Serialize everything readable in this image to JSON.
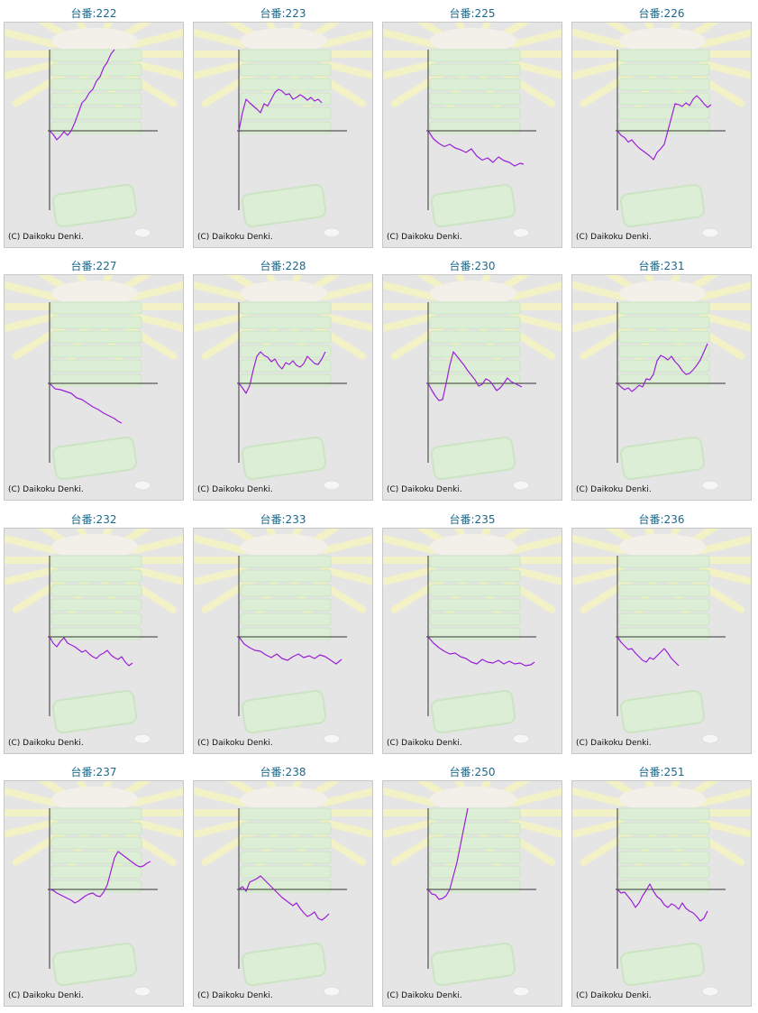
{
  "copyright": "(C) Daikoku Denki.",
  "colors": {
    "line": "#9b1fd6",
    "axis": "#333333",
    "title": "#1b6a8e",
    "background": "#e5e5e5"
  },
  "chart_data": [
    {
      "type": "line",
      "title": "台番:222",
      "x": [
        0,
        4,
        8,
        12,
        16,
        20,
        24,
        28,
        32,
        36,
        40,
        44,
        48,
        52,
        56,
        60,
        64,
        68,
        72
      ],
      "y": [
        0,
        -8,
        -20,
        -12,
        -2,
        -10,
        0,
        18,
        40,
        62,
        70,
        84,
        92,
        110,
        120,
        140,
        152,
        170,
        180
      ]
    },
    {
      "type": "line",
      "title": "台番:223",
      "x": [
        0,
        4,
        8,
        12,
        16,
        20,
        24,
        28,
        32,
        36,
        40,
        44,
        48,
        52,
        56,
        60,
        64,
        68,
        72,
        76,
        80,
        84,
        88,
        92
      ],
      "y": [
        0,
        40,
        70,
        62,
        55,
        48,
        40,
        60,
        55,
        70,
        85,
        92,
        88,
        80,
        82,
        70,
        74,
        80,
        75,
        68,
        74,
        66,
        70,
        62
      ]
    },
    {
      "type": "line",
      "title": "台番:225",
      "x": [
        0,
        6,
        12,
        18,
        24,
        30,
        36,
        42,
        48,
        54,
        60,
        66,
        72,
        78,
        84,
        90,
        96,
        102,
        106
      ],
      "y": [
        0,
        -18,
        -28,
        -35,
        -30,
        -38,
        -42,
        -48,
        -40,
        -56,
        -65,
        -60,
        -70,
        -58,
        -66,
        -70,
        -78,
        -72,
        -74
      ]
    },
    {
      "type": "line",
      "title": "台番:226",
      "x": [
        0,
        4,
        8,
        12,
        16,
        20,
        24,
        28,
        32,
        36,
        40,
        44,
        48,
        52,
        56,
        60,
        64,
        68,
        72,
        76,
        80,
        84,
        88,
        92,
        96,
        100,
        104
      ],
      "y": [
        0,
        -10,
        -15,
        -25,
        -20,
        -30,
        -38,
        -44,
        -50,
        -56,
        -64,
        -48,
        -40,
        -30,
        0,
        30,
        60,
        58,
        54,
        62,
        56,
        70,
        78,
        70,
        60,
        52,
        58
      ]
    },
    {
      "type": "line",
      "title": "台番:227",
      "x": [
        0,
        6,
        12,
        18,
        24,
        30,
        36,
        42,
        48,
        54,
        60,
        66,
        72,
        76,
        80
      ],
      "y": [
        0,
        -12,
        -14,
        -18,
        -22,
        -32,
        -36,
        -44,
        -52,
        -58,
        -66,
        -72,
        -78,
        -84,
        -88
      ]
    },
    {
      "type": "line",
      "title": "台番:228",
      "x": [
        0,
        4,
        8,
        12,
        16,
        20,
        24,
        28,
        32,
        36,
        40,
        44,
        48,
        52,
        56,
        60,
        64,
        68,
        72,
        76,
        80,
        84,
        88,
        92,
        96
      ],
      "y": [
        0,
        -10,
        -22,
        -5,
        30,
        60,
        70,
        62,
        58,
        48,
        54,
        40,
        32,
        46,
        42,
        50,
        40,
        36,
        44,
        60,
        52,
        44,
        42,
        54,
        70
      ]
    },
    {
      "type": "line",
      "title": "台番:230",
      "x": [
        0,
        4,
        8,
        12,
        16,
        20,
        24,
        28,
        32,
        36,
        40,
        44,
        48,
        52,
        56,
        60,
        64,
        68,
        72,
        76,
        80,
        84,
        88,
        92,
        96,
        100,
        104
      ],
      "y": [
        0,
        -15,
        -28,
        -38,
        -36,
        0,
        40,
        70,
        60,
        50,
        40,
        28,
        18,
        8,
        -6,
        -2,
        10,
        6,
        -4,
        -16,
        -10,
        0,
        12,
        4,
        0,
        -4,
        -8
      ]
    },
    {
      "type": "line",
      "title": "台番:231",
      "x": [
        0,
        4,
        8,
        12,
        16,
        20,
        24,
        28,
        32,
        36,
        40,
        44,
        48,
        52,
        56,
        60,
        64,
        68,
        72,
        76,
        80,
        84,
        88,
        92,
        96,
        100
      ],
      "y": [
        0,
        -8,
        -14,
        -10,
        -18,
        -12,
        -4,
        -8,
        10,
        8,
        20,
        50,
        62,
        58,
        52,
        60,
        48,
        40,
        28,
        20,
        22,
        30,
        40,
        52,
        70,
        88
      ]
    },
    {
      "type": "line",
      "title": "台番:232",
      "x": [
        0,
        4,
        8,
        12,
        16,
        20,
        24,
        28,
        32,
        36,
        40,
        44,
        48,
        52,
        56,
        60,
        64,
        68,
        72,
        76,
        80,
        84,
        88,
        92
      ],
      "y": [
        0,
        -14,
        -22,
        -10,
        -2,
        -14,
        -18,
        -22,
        -28,
        -34,
        -30,
        -38,
        -44,
        -48,
        -40,
        -36,
        -30,
        -40,
        -46,
        -50,
        -44,
        -56,
        -64,
        -58
      ]
    },
    {
      "type": "line",
      "title": "台番:233",
      "x": [
        0,
        6,
        12,
        18,
        24,
        30,
        36,
        42,
        48,
        54,
        60,
        66,
        72,
        78,
        84,
        90,
        96,
        102,
        108,
        114
      ],
      "y": [
        0,
        -16,
        -24,
        -30,
        -32,
        -40,
        -46,
        -38,
        -48,
        -52,
        -44,
        -38,
        -46,
        -42,
        -48,
        -40,
        -44,
        -52,
        -60,
        -50
      ]
    },
    {
      "type": "line",
      "title": "台番:235",
      "x": [
        0,
        6,
        12,
        18,
        24,
        30,
        36,
        42,
        48,
        54,
        60,
        66,
        72,
        78,
        84,
        90,
        96,
        102,
        108,
        114,
        118
      ],
      "y": [
        0,
        -14,
        -24,
        -32,
        -38,
        -36,
        -44,
        -48,
        -56,
        -60,
        -50,
        -56,
        -58,
        -52,
        -60,
        -54,
        -60,
        -58,
        -64,
        -62,
        -56
      ]
    },
    {
      "type": "line",
      "title": "台番:236",
      "x": [
        0,
        4,
        8,
        12,
        16,
        20,
        24,
        28,
        32,
        36,
        40,
        44,
        48,
        52,
        56,
        60,
        64,
        68
      ],
      "y": [
        0,
        -12,
        -20,
        -28,
        -26,
        -36,
        -44,
        -52,
        -56,
        -46,
        -50,
        -42,
        -34,
        -26,
        -36,
        -48,
        -56,
        -64
      ]
    },
    {
      "type": "line",
      "title": "台番:237",
      "x": [
        0,
        4,
        8,
        12,
        16,
        20,
        24,
        28,
        32,
        36,
        40,
        44,
        48,
        52,
        56,
        60,
        64,
        68,
        72,
        76,
        80,
        84,
        88,
        92,
        96,
        100,
        104,
        108,
        112
      ],
      "y": [
        0,
        -2,
        -8,
        -12,
        -16,
        -20,
        -24,
        -30,
        -26,
        -20,
        -14,
        -10,
        -8,
        -14,
        -16,
        -6,
        10,
        40,
        70,
        84,
        78,
        72,
        66,
        60,
        54,
        50,
        52,
        58,
        62
      ]
    },
    {
      "type": "line",
      "title": "台番:238",
      "x": [
        0,
        4,
        8,
        12,
        16,
        20,
        24,
        28,
        32,
        36,
        40,
        44,
        48,
        52,
        56,
        60,
        64,
        68,
        72,
        76,
        80,
        84,
        88,
        92,
        96,
        100
      ],
      "y": [
        0,
        6,
        -4,
        16,
        20,
        24,
        30,
        22,
        14,
        6,
        -2,
        -10,
        -18,
        -24,
        -30,
        -36,
        -30,
        -42,
        -52,
        -60,
        -56,
        -50,
        -64,
        -68,
        -62,
        -54
      ]
    },
    {
      "type": "line",
      "title": "台番:250",
      "x": [
        0,
        4,
        8,
        12,
        16,
        20,
        24,
        28,
        32,
        36,
        40,
        44
      ],
      "y": [
        0,
        -10,
        -12,
        -22,
        -20,
        -14,
        0,
        30,
        60,
        100,
        140,
        180
      ]
    },
    {
      "type": "line",
      "title": "台番:251",
      "x": [
        0,
        4,
        8,
        12,
        16,
        20,
        24,
        28,
        32,
        36,
        40,
        44,
        48,
        52,
        56,
        60,
        64,
        68,
        72,
        76,
        80,
        84,
        88,
        92,
        96,
        100
      ],
      "y": [
        0,
        -8,
        -6,
        -16,
        -26,
        -40,
        -30,
        -14,
        -2,
        12,
        -4,
        -16,
        -22,
        -34,
        -40,
        -32,
        -36,
        -44,
        -30,
        -42,
        -48,
        -52,
        -60,
        -70,
        -64,
        -48
      ]
    }
  ]
}
